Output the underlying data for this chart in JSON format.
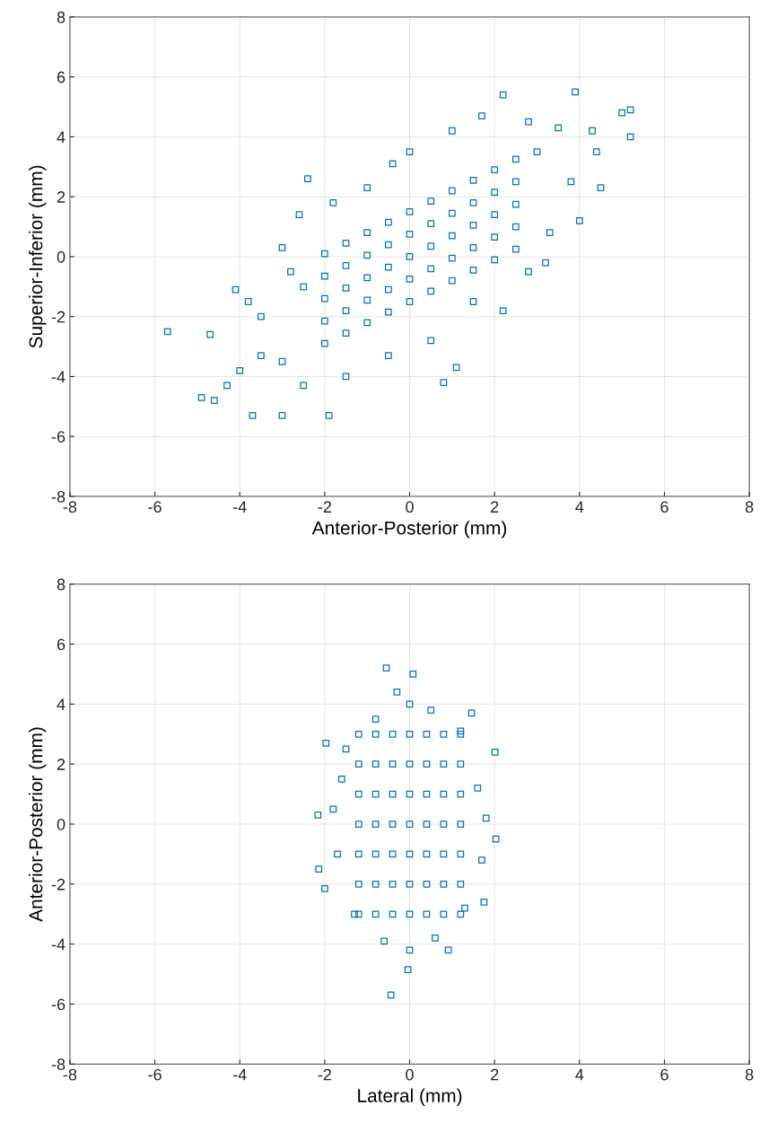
{
  "chart_data": [
    {
      "type": "scatter",
      "xlabel": "Anterior-Posterior (mm)",
      "ylabel": "Superior-Inferior (mm)",
      "color": "#0072bd",
      "marker": "square",
      "grid": true,
      "xlim": [
        -8,
        8
      ],
      "ylim": [
        -8,
        8
      ],
      "xticks": [
        -8,
        -6,
        -4,
        -2,
        0,
        2,
        4,
        6,
        8
      ],
      "yticks": [
        -8,
        -6,
        -4,
        -2,
        0,
        2,
        4,
        6,
        8
      ],
      "x": [
        -2,
        -2,
        -2,
        -2,
        -2,
        -1.5,
        -1.5,
        -1.5,
        -1.5,
        -1.5,
        -1,
        -1,
        -1,
        -1,
        -1,
        -0.5,
        -0.5,
        -0.5,
        -0.5,
        -0.5,
        0,
        0,
        0,
        0,
        0,
        0.5,
        0.5,
        0.5,
        0.5,
        0.5,
        1,
        1,
        1,
        1,
        1,
        1.5,
        1.5,
        1.5,
        1.5,
        1.5,
        2,
        2,
        2,
        2,
        2,
        2.5,
        2.5,
        2.5,
        2.5,
        2.5,
        -5.7,
        -4.9,
        -4.7,
        -4.6,
        -4.3,
        -3.7,
        -3.0,
        -1.9,
        -2.4,
        0.8,
        1.1,
        2.2,
        3.9,
        5.2,
        5.0,
        5.2,
        4.4,
        4.0,
        2.2,
        3.2,
        -0.4,
        -4.1,
        -2.6,
        -3,
        -3.5,
        -2.8,
        -3,
        -1.8,
        -1,
        0,
        1,
        1.7,
        2.8,
        3.5,
        3.8,
        3.3,
        2.8,
        1.5,
        0.5,
        -0.5,
        -1.5,
        -2.5,
        -3.5,
        -4,
        3,
        -2.5,
        -3.8,
        4.3,
        4.5
      ],
      "values": [
        -2.9,
        -2.15,
        -1.4,
        -0.65,
        0.1,
        -2.55,
        -1.8,
        -1.05,
        -0.3,
        0.45,
        -2.2,
        -1.45,
        -0.7,
        0.05,
        0.8,
        -1.85,
        -1.1,
        -0.35,
        0.4,
        1.15,
        -1.5,
        -0.75,
        0,
        0.75,
        1.5,
        -1.15,
        -0.4,
        0.35,
        1.1,
        1.85,
        -0.8,
        -0.05,
        0.7,
        1.45,
        2.2,
        -0.45,
        0.3,
        1.05,
        1.8,
        2.55,
        -0.1,
        0.65,
        1.4,
        2.15,
        2.9,
        0.25,
        1.0,
        1.75,
        2.5,
        3.25,
        -2.5,
        -4.7,
        -2.6,
        -4.8,
        -4.3,
        -5.3,
        -5.3,
        -5.3,
        2.6,
        -4.2,
        -3.7,
        5.4,
        5.5,
        4.9,
        4.8,
        4.0,
        3.5,
        1.2,
        -1.8,
        -0.2,
        3.1,
        -1.1,
        1.4,
        -3.5,
        -2,
        -0.5,
        0.3,
        1.8,
        2.3,
        3.5,
        4.2,
        4.7,
        4.5,
        4.3,
        2.5,
        0.8,
        -0.5,
        -1.5,
        -2.8,
        -3.3,
        -4,
        -4.3,
        -3.3,
        -3.8,
        3.5,
        -1,
        -1.5,
        4.2,
        2.3
      ]
    },
    {
      "type": "scatter",
      "xlabel": "Lateral (mm)",
      "ylabel": "Anterior-Posterior (mm)",
      "color": "#0072bd",
      "marker": "square",
      "grid": true,
      "xlim": [
        -8,
        8
      ],
      "ylim": [
        -8,
        8
      ],
      "xticks": [
        -8,
        -6,
        -4,
        -2,
        0,
        2,
        4,
        6,
        8
      ],
      "yticks": [
        -8,
        -6,
        -4,
        -2,
        0,
        2,
        4,
        6,
        8
      ],
      "x": [
        -1.2,
        -1.2,
        -1.2,
        -1.2,
        -1.2,
        -1.2,
        -1.2,
        -0.8,
        -0.8,
        -0.8,
        -0.8,
        -0.8,
        -0.8,
        -0.8,
        -0.4,
        -0.4,
        -0.4,
        -0.4,
        -0.4,
        -0.4,
        -0.4,
        0,
        0,
        0,
        0,
        0,
        0,
        0,
        0.4,
        0.4,
        0.4,
        0.4,
        0.4,
        0.4,
        0.4,
        0.8,
        0.8,
        0.8,
        0.8,
        0.8,
        0.8,
        0.8,
        1.2,
        1.2,
        1.2,
        1.2,
        1.2,
        1.2,
        1.2,
        -0.44,
        -0.55,
        0.08,
        -2.14,
        -2.16,
        -2.0,
        -1.97,
        2.01,
        2.03,
        1.46,
        -0.04,
        0.91,
        1.75,
        -1.6,
        -1.7,
        1.6,
        1.7,
        0,
        -0.3,
        0.5,
        -0.8,
        0,
        -0.6,
        0.6,
        -1.3,
        1.3,
        -1.8,
        1.8,
        -1.5,
        1.2
      ],
      "values": [
        -3,
        -2,
        -1,
        0,
        1,
        2,
        3,
        -3,
        -2,
        -1,
        0,
        1,
        2,
        3,
        -3,
        -2,
        -1,
        0,
        1,
        2,
        3,
        -3,
        -2,
        -1,
        0,
        1,
        2,
        3,
        -3,
        -2,
        -1,
        0,
        1,
        2,
        3,
        -3,
        -2,
        -1,
        0,
        1,
        2,
        3,
        -3,
        -2,
        -1,
        0,
        1,
        2,
        3,
        -5.7,
        5.2,
        5.0,
        -1.5,
        0.3,
        -2.15,
        2.7,
        2.4,
        -0.5,
        3.7,
        -4.85,
        -4.2,
        -2.6,
        1.5,
        -1,
        1.2,
        -1.2,
        4,
        4.4,
        3.8,
        3.5,
        -4.2,
        -3.9,
        -3.8,
        -3,
        -2.8,
        0.5,
        0.2,
        2.5,
        3.1
      ]
    }
  ]
}
